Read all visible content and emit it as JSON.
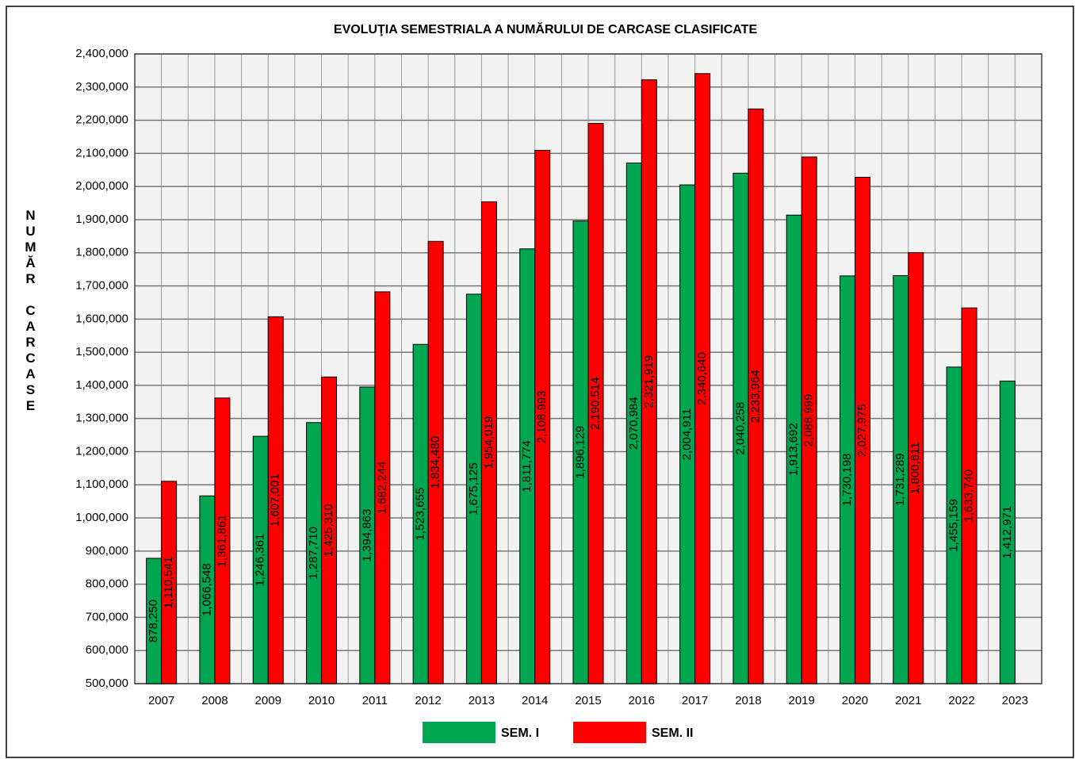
{
  "chart_data": {
    "type": "bar",
    "title": "EVOLUŢIA  SEMESTRIALA  A NUMĂRULUI DE CARCASE  CLASIFICATE",
    "y_label": "NUMĂR CARCASE",
    "categories": [
      "2007",
      "2008",
      "2009",
      "2010",
      "2011",
      "2012",
      "2013",
      "2014",
      "2015",
      "2016",
      "2017",
      "2018",
      "2019",
      "2020",
      "2021",
      "2022",
      "2023"
    ],
    "series": [
      {
        "name": "SEM. I",
        "color": "#00a650",
        "values": [
          878250,
          1066548,
          1246361,
          1287710,
          1394863,
          1523655,
          1675125,
          1811774,
          1896129,
          2070984,
          2004911,
          2040258,
          1913692,
          1730198,
          1731289,
          1455159,
          1412971
        ],
        "value_labels": [
          "878,250",
          "1,066,548",
          "1,246,361",
          "1,287,710",
          "1,394,863",
          "1,523,655",
          "1,675,125",
          "1,811,774",
          "1,896,129",
          "2,070,984",
          "2,004,911",
          "2,040,258",
          "1,913,692",
          "1,730,198",
          "1,731,289",
          "1,455,159",
          "1,412,971"
        ]
      },
      {
        "name": "SEM. II",
        "color": "#ff0000",
        "values": [
          1110541,
          1361861,
          1607001,
          1425310,
          1682244,
          1834480,
          1954019,
          2108993,
          2190514,
          2321919,
          2340640,
          2233964,
          2088999,
          2027975,
          1800611,
          1633740,
          null
        ],
        "value_labels": [
          "1,110,541",
          "1,361,861",
          "1,607,001",
          "1,425,310",
          "1,682,244",
          "1,834,480",
          "1,954,019",
          "2,108,993",
          "2,190,514",
          "2,321,919",
          "2,340,640",
          "2,233,964",
          "2,088,999",
          "2,027,975",
          "1,800,611",
          "1,633,740",
          null
        ]
      }
    ],
    "ylim": [
      500000,
      2400000
    ],
    "yticks": [
      {
        "value": 500000,
        "label": "500,000"
      },
      {
        "value": 600000,
        "label": "600,000"
      },
      {
        "value": 700000,
        "label": "700,000"
      },
      {
        "value": 800000,
        "label": "800,000"
      },
      {
        "value": 900000,
        "label": "900,000"
      },
      {
        "value": 1000000,
        "label": "1,000,000"
      },
      {
        "value": 1100000,
        "label": "1,100,000"
      },
      {
        "value": 1200000,
        "label": "1,200,000"
      },
      {
        "value": 1300000,
        "label": "1,300,000"
      },
      {
        "value": 1400000,
        "label": "1,400,000"
      },
      {
        "value": 1500000,
        "label": "1,500,000"
      },
      {
        "value": 1600000,
        "label": "1,600,000"
      },
      {
        "value": 1700000,
        "label": "1,700,000"
      },
      {
        "value": 1800000,
        "label": "1,800,000"
      },
      {
        "value": 1900000,
        "label": "1,900,000"
      },
      {
        "value": 2000000,
        "label": "2,000,000"
      },
      {
        "value": 2100000,
        "label": "2,100,000"
      },
      {
        "value": 2200000,
        "label": "2,200,000"
      },
      {
        "value": 2300000,
        "label": "2,300,000"
      },
      {
        "value": 2400000,
        "label": "2,400,000"
      }
    ],
    "grid": true,
    "legend": "bottom"
  }
}
